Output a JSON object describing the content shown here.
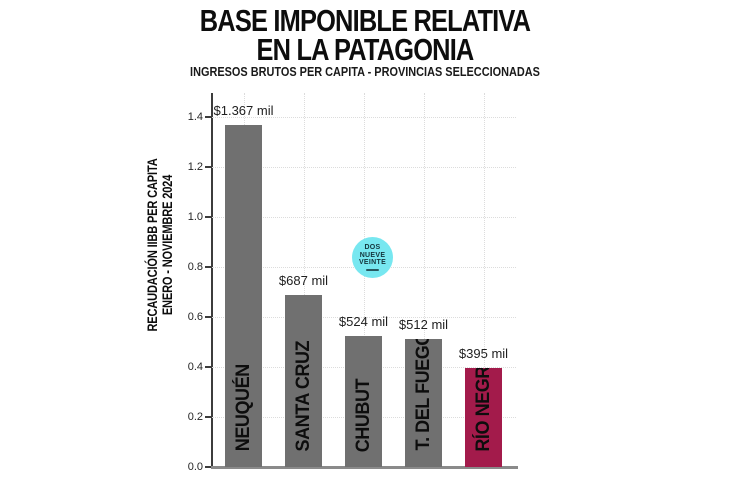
{
  "header": {
    "title_line1": "BASE IMPONIBLE RELATIVA",
    "title_line2": "EN LA PATAGONIA",
    "subtitle": "INGRESOS BRUTOS PER CAPITA - PROVINCIAS SELECCIONADAS"
  },
  "y_axis": {
    "label_line1": "RECAUDACIÓN IIBB PER CAPITA",
    "label_line2": "ENERO - NOVIEMBRE 2024",
    "ticks": [
      "0.0",
      "0.2",
      "0.4",
      "0.6",
      "0.8",
      "1.0",
      "1.2",
      "1.4"
    ]
  },
  "badge": {
    "line1": "DOS",
    "line2": "NUEVE",
    "line3": "VEINTE"
  },
  "colors": {
    "bar_default": "#707070",
    "bar_highlight": "#a31b4b",
    "badge_bg": "#77e7f0",
    "title_text": "#0d0d0d"
  },
  "chart_data": {
    "type": "bar",
    "title": "BASE IMPONIBLE RELATIVA EN LA PATAGONIA",
    "subtitle": "INGRESOS BRUTOS PER CAPITA - PROVINCIAS SELECCIONADAS",
    "ylabel": "RECAUDACIÓN IIBB PER CAPITA ENERO - NOVIEMBRE 2024",
    "categories": [
      "NEUQUÉN",
      "SANTA CRUZ",
      "CHUBUT",
      "T. DEL FUEGO",
      "RÍO NEGRO"
    ],
    "values": [
      1.367,
      0.687,
      0.524,
      0.512,
      0.395
    ],
    "value_labels": [
      "$1.367 mil",
      "$687 mil",
      "$524 mil",
      "$512 mil",
      "$395 mil"
    ],
    "highlight_index": 4,
    "yticks": [
      0.0,
      0.2,
      0.4,
      0.6,
      0.8,
      1.0,
      1.2,
      1.4
    ],
    "ylim": [
      0,
      1.496
    ],
    "grid": true,
    "legend": null
  }
}
